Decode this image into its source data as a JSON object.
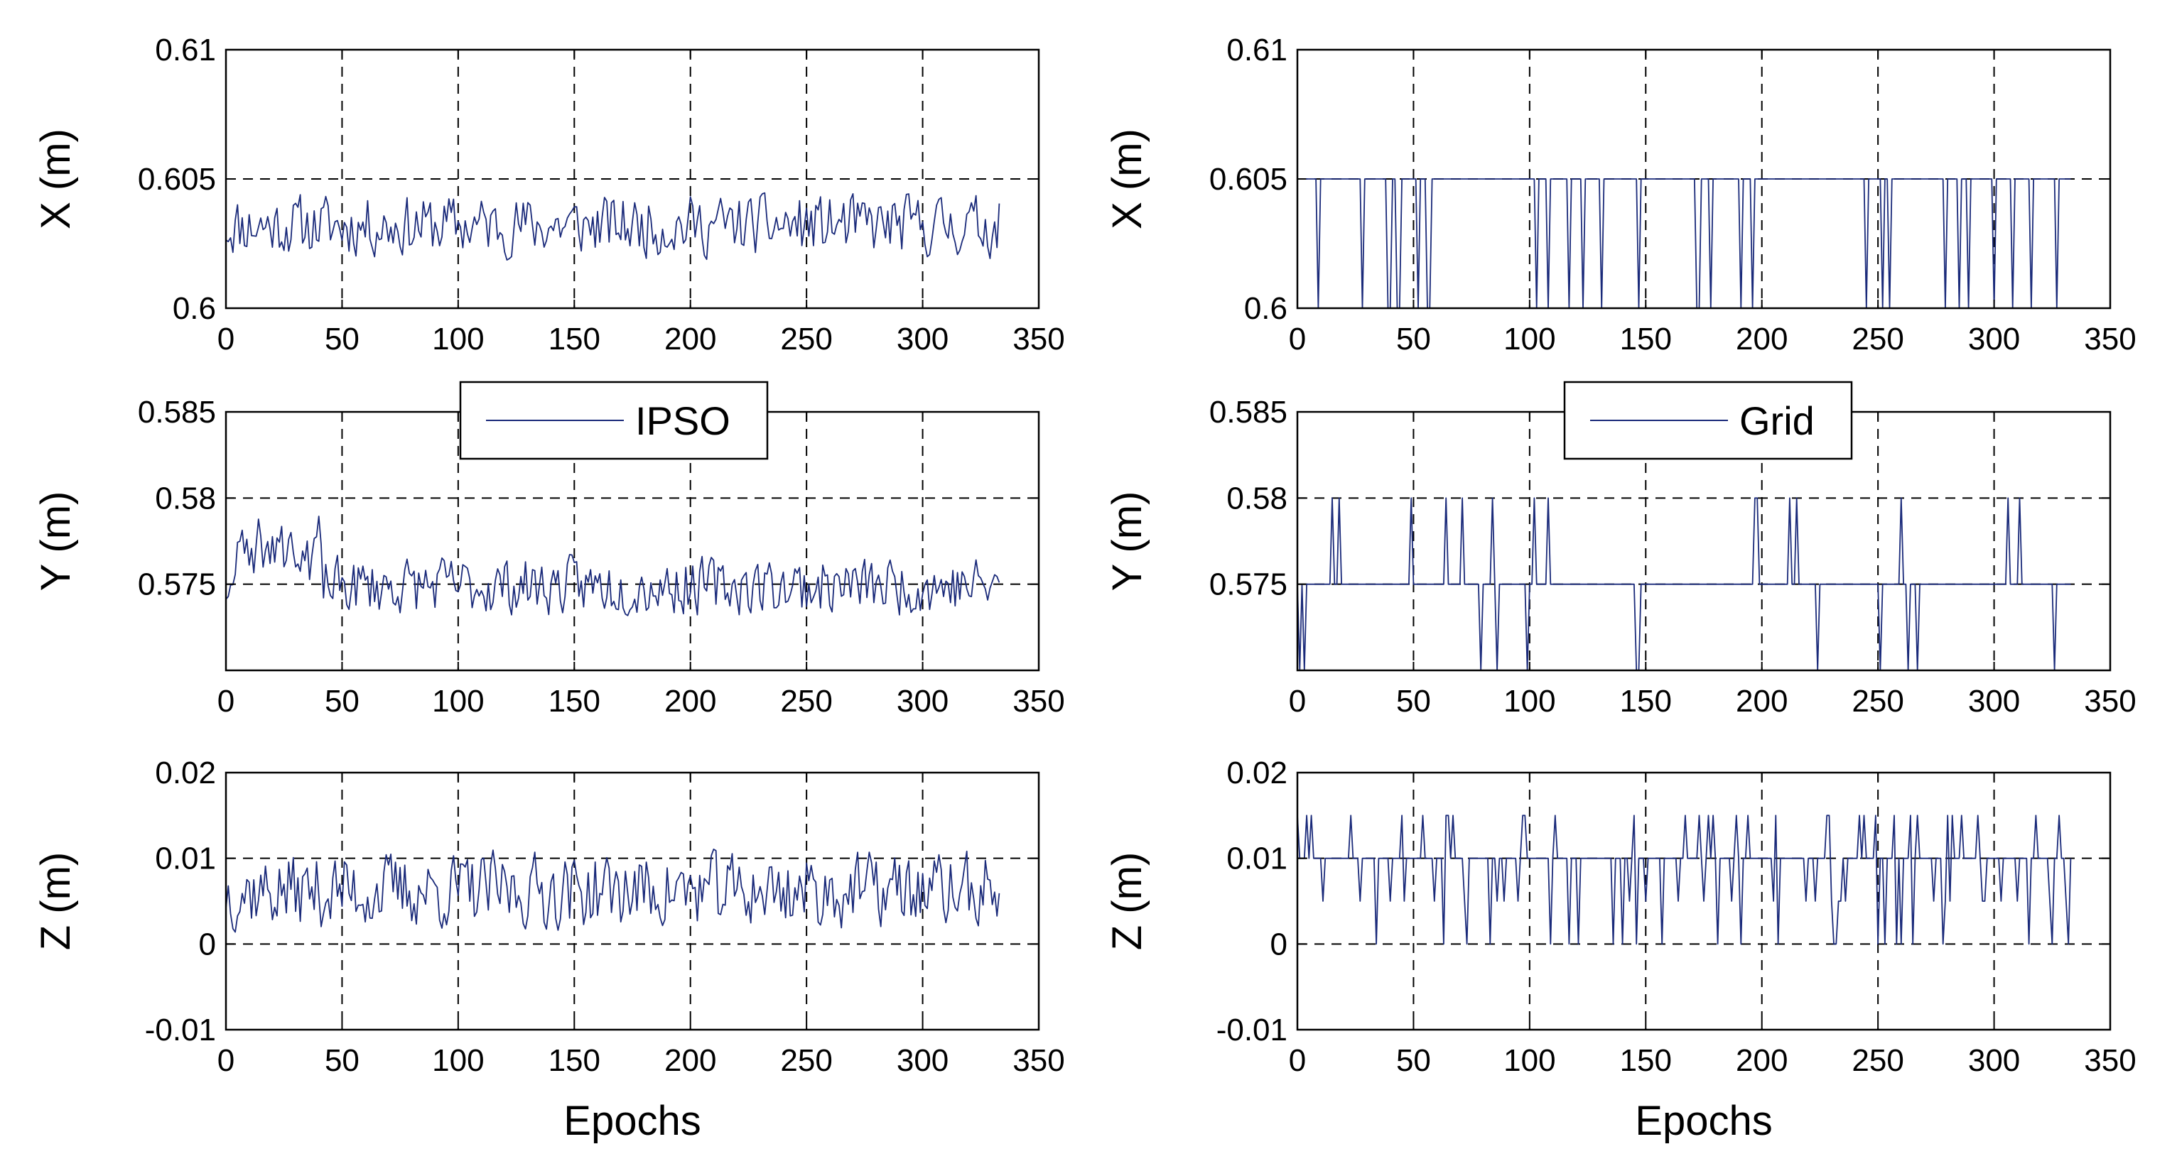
{
  "colors": {
    "series": "#1a2a7a",
    "grid": "#000000",
    "axis": "#000000"
  },
  "chart_data": [
    {
      "id": "ipso-x",
      "type": "line",
      "method": "IPSO",
      "ylabel": "X (m)",
      "xlabel": "",
      "xlim": [
        0,
        350
      ],
      "ylim": [
        0.6,
        0.61
      ],
      "xticks": [
        0,
        50,
        100,
        150,
        200,
        250,
        300,
        350
      ],
      "xtick_labels": [
        "0",
        "50",
        "100",
        "150",
        "200",
        "250",
        "300",
        "350"
      ],
      "yticks": [
        0.6,
        0.605,
        0.61
      ],
      "ytick_labels": [
        "0.6",
        "0.605",
        "0.61"
      ],
      "grid": true,
      "legend": null,
      "series": [
        {
          "name": "IPSO",
          "gen": "ipso-x"
        }
      ]
    },
    {
      "id": "ipso-y",
      "type": "line",
      "method": "IPSO",
      "ylabel": "Y (m)",
      "xlabel": "",
      "xlim": [
        0,
        350
      ],
      "ylim": [
        0.57,
        0.585
      ],
      "xticks": [
        0,
        50,
        100,
        150,
        200,
        250,
        300,
        350
      ],
      "xtick_labels": [
        "0",
        "50",
        "100",
        "150",
        "200",
        "250",
        "300",
        "350"
      ],
      "yticks": [
        0.575,
        0.58,
        0.585
      ],
      "ytick_labels": [
        "0.575",
        "0.58",
        "0.585"
      ],
      "grid": true,
      "legend": {
        "label": "IPSO",
        "position": "top-center"
      },
      "series": [
        {
          "name": "IPSO",
          "gen": "ipso-y"
        }
      ]
    },
    {
      "id": "ipso-z",
      "type": "line",
      "method": "IPSO",
      "ylabel": "Z (m)",
      "xlabel": "Epochs",
      "xlim": [
        0,
        350
      ],
      "ylim": [
        -0.01,
        0.02
      ],
      "xticks": [
        0,
        50,
        100,
        150,
        200,
        250,
        300,
        350
      ],
      "xtick_labels": [
        "0",
        "50",
        "100",
        "150",
        "200",
        "250",
        "300",
        "350"
      ],
      "yticks": [
        -0.01,
        0,
        0.01,
        0.02
      ],
      "ytick_labels": [
        "-0.01",
        "0",
        "0.01",
        "0.02"
      ],
      "grid": true,
      "legend": null,
      "series": [
        {
          "name": "IPSO",
          "gen": "ipso-z"
        }
      ]
    },
    {
      "id": "grid-x",
      "type": "line",
      "method": "Grid",
      "ylabel": "X (m)",
      "xlabel": "",
      "xlim": [
        0,
        350
      ],
      "ylim": [
        0.6,
        0.61
      ],
      "xticks": [
        0,
        50,
        100,
        150,
        200,
        250,
        300,
        350
      ],
      "xtick_labels": [
        "0",
        "50",
        "100",
        "150",
        "200",
        "250",
        "300",
        "350"
      ],
      "yticks": [
        0.6,
        0.605,
        0.61
      ],
      "ytick_labels": [
        "0.6",
        "0.605",
        "0.61"
      ],
      "grid": true,
      "legend": null,
      "series": [
        {
          "name": "Grid",
          "gen": "grid-x"
        }
      ]
    },
    {
      "id": "grid-y",
      "type": "line",
      "method": "Grid",
      "ylabel": "Y (m)",
      "xlabel": "",
      "xlim": [
        0,
        350
      ],
      "ylim": [
        0.57,
        0.585
      ],
      "xticks": [
        0,
        50,
        100,
        150,
        200,
        250,
        300,
        350
      ],
      "xtick_labels": [
        "0",
        "50",
        "100",
        "150",
        "200",
        "250",
        "300",
        "350"
      ],
      "yticks": [
        0.575,
        0.58,
        0.585
      ],
      "ytick_labels": [
        "0.575",
        "0.58",
        "0.585"
      ],
      "grid": true,
      "legend": {
        "label": "Grid",
        "position": "top-center"
      },
      "series": [
        {
          "name": "Grid",
          "gen": "grid-y"
        }
      ]
    },
    {
      "id": "grid-z",
      "type": "line",
      "method": "Grid",
      "ylabel": "Z (m)",
      "xlabel": "Epochs",
      "xlim": [
        0,
        350
      ],
      "ylim": [
        -0.01,
        0.02
      ],
      "xticks": [
        0,
        50,
        100,
        150,
        200,
        250,
        300,
        350
      ],
      "xtick_labels": [
        "0",
        "50",
        "100",
        "150",
        "200",
        "250",
        "300",
        "350"
      ],
      "yticks": [
        -0.01,
        0,
        0.01,
        0.02
      ],
      "ytick_labels": [
        "-0.01",
        "0",
        "0.01",
        "0.02"
      ],
      "grid": true,
      "legend": null,
      "series": [
        {
          "name": "Grid",
          "gen": "grid-z"
        }
      ]
    }
  ],
  "series_generators": {
    "ipso-x": {
      "kind": "noise",
      "n": 334,
      "mean": 0.6032,
      "amp": 0.0012,
      "seed": 11,
      "clip": [
        0.6003,
        0.6058
      ]
    },
    "ipso-y": {
      "kind": "noise",
      "n": 334,
      "mean": 0.5749,
      "amp": 0.0017,
      "seed": 23,
      "clip": [
        0.5712,
        0.5802
      ],
      "boost": {
        "from": 5,
        "to": 40,
        "add": 0.0025
      }
    },
    "ipso-z": {
      "kind": "noise",
      "n": 334,
      "mean": 0.0062,
      "amp": 0.0045,
      "seed": 37,
      "clip": [
        -0.002,
        0.0175
      ]
    },
    "grid-x": {
      "kind": "levels",
      "n": 334,
      "levels": [
        0.6,
        0.605
      ],
      "base": 0.605,
      "flip": 0.22,
      "seed": 5,
      "calm": [
        [
          60,
          90
        ],
        [
          150,
          170
        ],
        [
          205,
          235
        ]
      ]
    },
    "grid-y": {
      "kind": "levels",
      "n": 334,
      "levels": [
        0.575,
        0.58,
        0.57
      ],
      "base": 0.575,
      "flip": 0.14,
      "seed": 19,
      "calm": [
        [
          30,
          45
        ],
        [
          155,
          195
        ],
        [
          225,
          250
        ]
      ]
    },
    "grid-z": {
      "kind": "levels",
      "n": 334,
      "levels": [
        0.005,
        0.01,
        0.0,
        0.015
      ],
      "base": 0.01,
      "flip": 0.35,
      "seed": 29,
      "calm": []
    }
  }
}
